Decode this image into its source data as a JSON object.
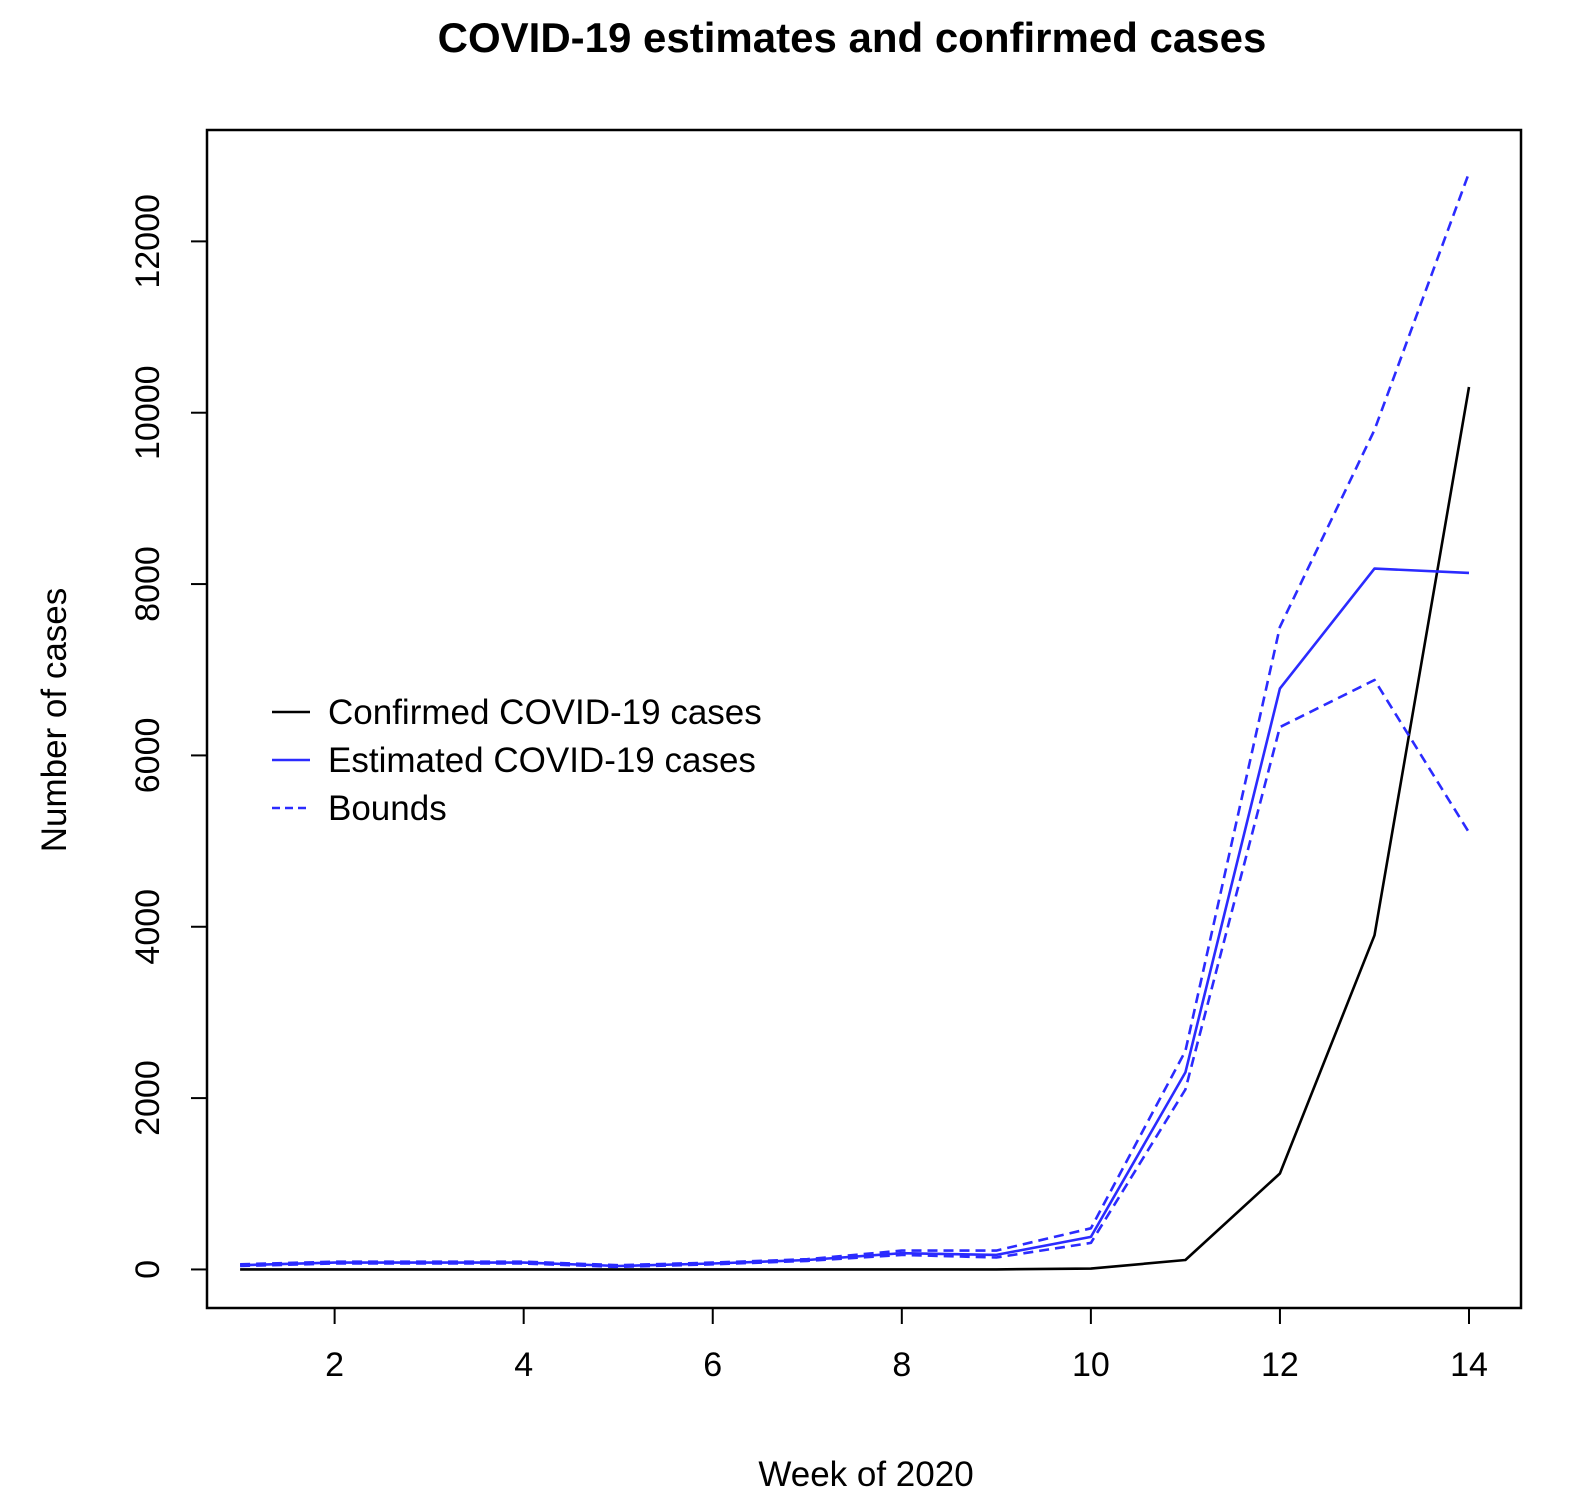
{
  "chart_data": {
    "type": "line",
    "title": "COVID-19 estimates and confirmed cases",
    "xlabel": "Week of 2020",
    "ylabel": "Number of cases",
    "x": [
      1,
      2,
      3,
      4,
      5,
      6,
      7,
      8,
      9,
      10,
      11,
      12,
      13,
      14
    ],
    "xlim": [
      0.65,
      14.55
    ],
    "ylim": [
      -450,
      13300
    ],
    "x_ticks": [
      2,
      4,
      6,
      8,
      10,
      12,
      14
    ],
    "x_tick_labels": [
      "2",
      "4",
      "6",
      "8",
      "10",
      "12",
      "14"
    ],
    "y_ticks": [
      0,
      2000,
      4000,
      6000,
      8000,
      10000,
      12000
    ],
    "y_tick_labels": [
      "0",
      "2000",
      "4000",
      "6000",
      "8000",
      "10000",
      "12000"
    ],
    "grid": false,
    "legend_position": "center-left",
    "series": [
      {
        "name": "Confirmed COVID-19 cases",
        "color": "#000000",
        "dash": "solid",
        "values": [
          0,
          0,
          0,
          0,
          0,
          0,
          0,
          0,
          0,
          10,
          110,
          1120,
          3900,
          10300
        ]
      },
      {
        "name": "Estimated COVID-19 cases",
        "color": "#2b2bff",
        "dash": "solid",
        "values": [
          50,
          80,
          80,
          80,
          40,
          70,
          110,
          190,
          170,
          380,
          2300,
          6780,
          8180,
          8130
        ]
      },
      {
        "name": "Bounds",
        "color": "#2b2bff",
        "dash": "dashed",
        "values": [
          60,
          90,
          90,
          90,
          50,
          80,
          120,
          220,
          220,
          480,
          2550,
          7500,
          9800,
          12800
        ]
      },
      {
        "name": "",
        "color": "#2b2bff",
        "dash": "dashed",
        "values": [
          40,
          70,
          70,
          70,
          30,
          60,
          100,
          170,
          140,
          310,
          2100,
          6330,
          6880,
          5100
        ]
      }
    ],
    "legend": [
      {
        "label": "Confirmed COVID-19 cases",
        "color": "#000000",
        "dash": "solid"
      },
      {
        "label": "Estimated COVID-19 cases",
        "color": "#2b2bff",
        "dash": "solid"
      },
      {
        "label": "Bounds",
        "color": "#2b2bff",
        "dash": "dashed"
      }
    ]
  }
}
